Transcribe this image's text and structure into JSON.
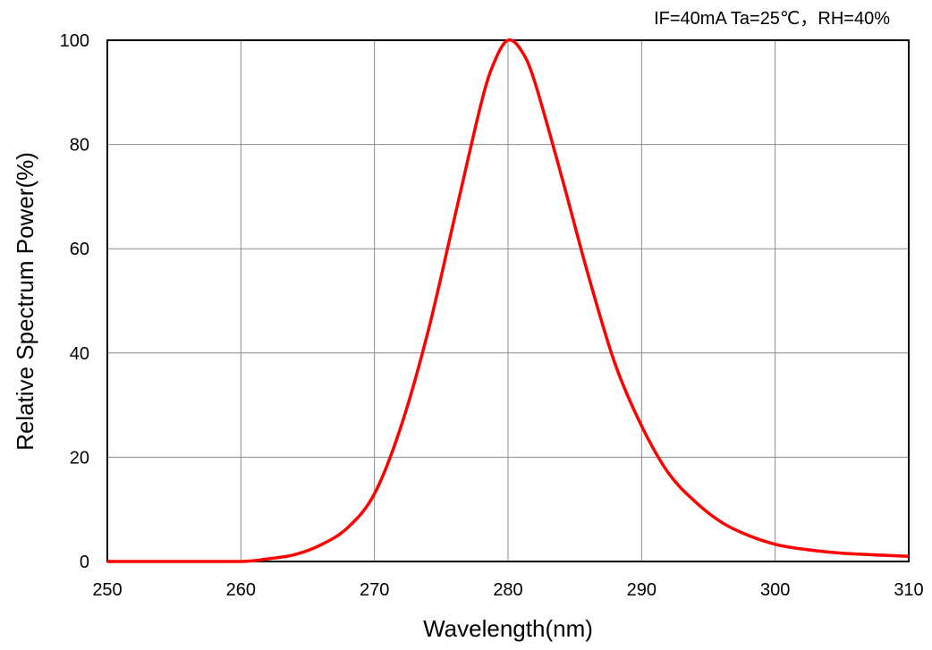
{
  "chart_data": {
    "type": "line",
    "annotation": "IF=40mA  Ta=25℃，RH=40%",
    "xlabel": "Wavelength(nm)",
    "ylabel": "Relative Spectrum Power(%)",
    "xlim": [
      250,
      310
    ],
    "ylim": [
      0,
      100
    ],
    "x_ticks": [
      "250",
      "260",
      "270",
      "280",
      "290",
      "300",
      "310"
    ],
    "y_ticks": [
      "0",
      "20",
      "40",
      "60",
      "80",
      "100"
    ],
    "grid": true,
    "line_color": "#ff0000",
    "series": [
      {
        "x": [
          250,
          255,
          260,
          262,
          264,
          266,
          268,
          270,
          272,
          274,
          276,
          278,
          279,
          280,
          281,
          282,
          284,
          286,
          288,
          290,
          292,
          294,
          296,
          298,
          300,
          302,
          305,
          310
        ],
        "values": [
          0,
          0,
          0,
          0.5,
          1.3,
          3.2,
          6.5,
          13,
          26,
          44,
          66,
          88,
          96,
          100,
          98,
          92,
          74,
          55,
          38,
          26,
          17,
          11.5,
          7.5,
          5,
          3.3,
          2.4,
          1.6,
          1
        ]
      }
    ]
  }
}
